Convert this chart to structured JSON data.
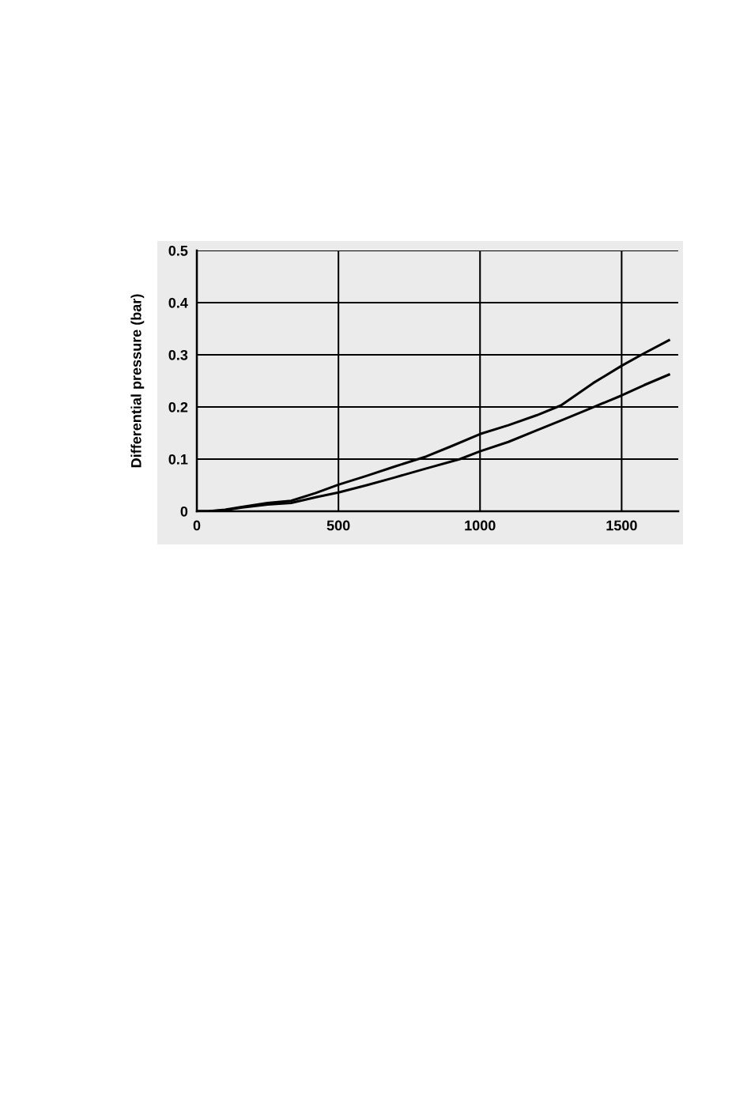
{
  "chart_data": {
    "type": "line",
    "ylabel": "Differential pressure (bar)",
    "xlim": [
      0,
      1700
    ],
    "xticks": [
      0,
      500,
      1000,
      1500
    ],
    "ylim": [
      0,
      0.5
    ],
    "yticks": [
      0,
      0.1,
      0.2,
      0.3,
      0.4,
      0.5
    ],
    "grid": true,
    "line_style": "solid",
    "marker": "none",
    "series": [
      {
        "color": "#000000",
        "x": [
          0,
          40,
          100,
          155,
          250,
          333,
          420,
          500,
          600,
          700,
          810,
          900,
          1000,
          1100,
          1200,
          1286,
          1400,
          1500,
          1580,
          1667
        ],
        "values": [
          0,
          0.0,
          0.003,
          0.008,
          0.016,
          0.02,
          0.035,
          0.051,
          0.068,
          0.086,
          0.105,
          0.125,
          0.148,
          0.165,
          0.184,
          0.203,
          0.246,
          0.279,
          0.303,
          0.328
        ]
      },
      {
        "color": "#000000",
        "x": [
          0,
          40,
          100,
          155,
          250,
          333,
          420,
          500,
          600,
          700,
          810,
          929,
          1000,
          1100,
          1200,
          1300,
          1393,
          1500,
          1580,
          1667
        ],
        "values": [
          0,
          0.0,
          0.002,
          0.007,
          0.013,
          0.016,
          0.027,
          0.036,
          0.05,
          0.065,
          0.082,
          0.1,
          0.115,
          0.133,
          0.155,
          0.177,
          0.198,
          0.222,
          0.242,
          0.262
        ]
      }
    ]
  }
}
